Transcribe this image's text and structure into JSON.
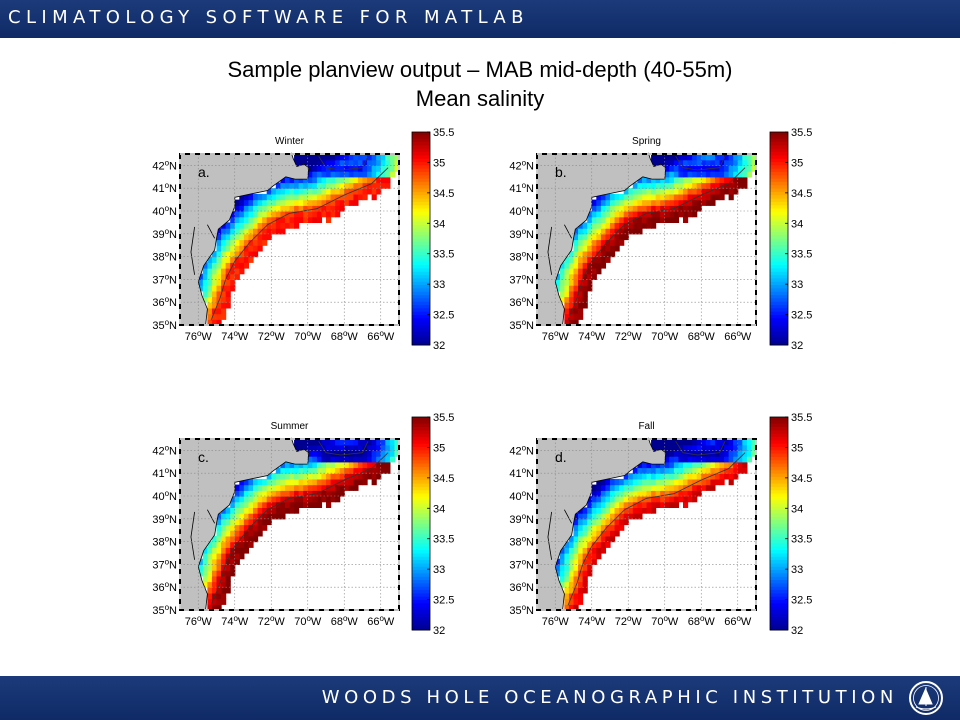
{
  "header": {
    "banner_text": "CLIMATOLOGY SOFTWARE FOR MATLAB"
  },
  "slide": {
    "title_line1": "Sample planview output – MAB mid-depth (40-55m)",
    "title_line2": "Mean salinity"
  },
  "footer": {
    "banner_text": "WOODS HOLE OCEANOGRAPHIC INSTITUTION"
  },
  "colors": {
    "banner": "#15306e",
    "land": "#c0c0c0",
    "colormap": [
      "#00008f",
      "#0000ff",
      "#0080ff",
      "#00ffff",
      "#80ff80",
      "#ffff00",
      "#ff8000",
      "#ff0000",
      "#800000"
    ]
  },
  "chart_data": [
    {
      "type": "heatmap",
      "title": "Winter",
      "panel_label": "a.",
      "xlabel": "",
      "ylabel": "",
      "xticks": [
        "76°W",
        "74°W",
        "72°W",
        "70°W",
        "68°W",
        "66°W"
      ],
      "yticks": [
        "35°N",
        "36°N",
        "37°N",
        "38°N",
        "39°N",
        "40°N",
        "41°N",
        "42°N"
      ],
      "xlim": [
        -77,
        -65
      ],
      "ylim": [
        35,
        42.5
      ],
      "colorbar": {
        "range": [
          32,
          35.5
        ],
        "ticks": [
          "35.5",
          "35",
          "34.5",
          "34",
          "33.5",
          "33",
          "32.5",
          "32"
        ]
      },
      "shelf_edge_salinity": 34.9,
      "offshore_max": 35.0,
      "gulf_of_maine_min": 32.5,
      "grid": true
    },
    {
      "type": "heatmap",
      "title": "Spring",
      "panel_label": "b.",
      "xlabel": "",
      "ylabel": "",
      "xticks": [
        "76°W",
        "74°W",
        "72°W",
        "70°W",
        "68°W",
        "66°W"
      ],
      "yticks": [
        "35°N",
        "36°N",
        "37°N",
        "38°N",
        "39°N",
        "40°N",
        "41°N",
        "42°N"
      ],
      "xlim": [
        -77,
        -65
      ],
      "ylim": [
        35,
        42.5
      ],
      "colorbar": {
        "range": [
          32,
          35.5
        ],
        "ticks": [
          "35.5",
          "35",
          "34.5",
          "34",
          "33.5",
          "33",
          "32.5",
          "32"
        ]
      },
      "shelf_edge_salinity": 35.3,
      "offshore_max": 35.5,
      "gulf_of_maine_min": 32.4,
      "grid": true
    },
    {
      "type": "heatmap",
      "title": "Summer",
      "panel_label": "c.",
      "xlabel": "",
      "ylabel": "",
      "xticks": [
        "76°W",
        "74°W",
        "72°W",
        "70°W",
        "68°W",
        "66°W"
      ],
      "yticks": [
        "35°N",
        "36°N",
        "37°N",
        "38°N",
        "39°N",
        "40°N",
        "41°N",
        "42°N"
      ],
      "xlim": [
        -77,
        -65
      ],
      "ylim": [
        35,
        42.5
      ],
      "colorbar": {
        "range": [
          32,
          35.5
        ],
        "ticks": [
          "35.5",
          "35",
          "34.5",
          "34",
          "33.5",
          "33",
          "32.5",
          "32"
        ]
      },
      "shelf_edge_salinity": 35.3,
      "offshore_max": 35.5,
      "gulf_of_maine_min": 32.0,
      "grid": true
    },
    {
      "type": "heatmap",
      "title": "Fall",
      "panel_label": "d.",
      "xlabel": "",
      "ylabel": "",
      "xticks": [
        "76°W",
        "74°W",
        "72°W",
        "70°W",
        "68°W",
        "66°W"
      ],
      "yticks": [
        "35°N",
        "36°N",
        "37°N",
        "38°N",
        "39°N",
        "40°N",
        "41°N",
        "42°N"
      ],
      "xlim": [
        -77,
        -65
      ],
      "ylim": [
        35,
        42.5
      ],
      "colorbar": {
        "range": [
          32,
          35.5
        ],
        "ticks": [
          "35.5",
          "35",
          "34.5",
          "34",
          "33.5",
          "33",
          "32.5",
          "32"
        ]
      },
      "shelf_edge_salinity": 34.8,
      "offshore_max": 35.2,
      "gulf_of_maine_min": 32.1,
      "grid": true
    }
  ]
}
